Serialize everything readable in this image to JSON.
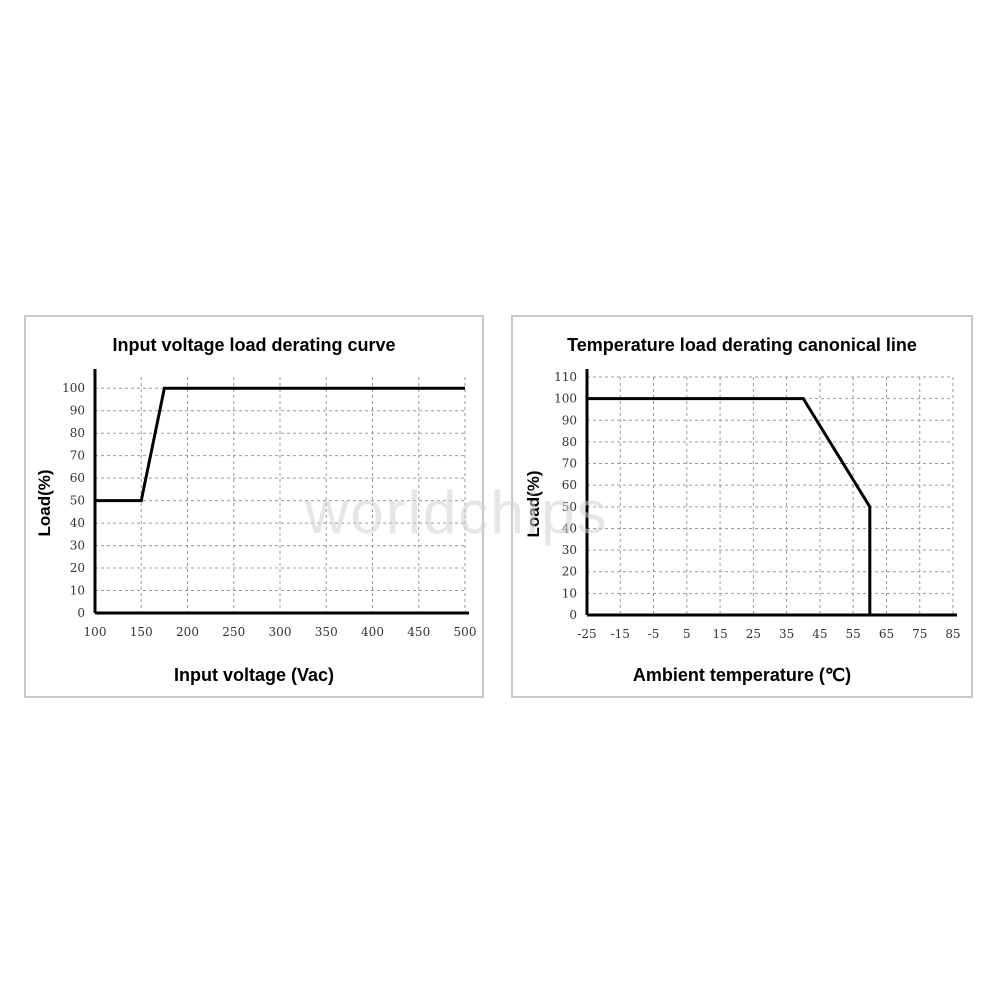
{
  "chart_data": [
    {
      "type": "line",
      "title": "Input voltage load derating curve",
      "xlabel": "Input voltage (Vac)",
      "ylabel": "Load(%)",
      "x_ticks": [
        100,
        150,
        200,
        250,
        300,
        350,
        400,
        450,
        500
      ],
      "y_ticks": [
        0,
        10,
        20,
        30,
        40,
        50,
        60,
        70,
        80,
        90,
        100
      ],
      "xlim": [
        100,
        500
      ],
      "ylim": [
        0,
        105
      ],
      "grid": true,
      "series": [
        {
          "x": [
            100,
            150,
            175,
            500
          ],
          "y": [
            50,
            50,
            100,
            100
          ]
        }
      ]
    },
    {
      "type": "line",
      "title": "Temperature load derating canonical line",
      "xlabel": "Ambient temperature (℃)",
      "ylabel": "Load(%)",
      "x_ticks": [
        -25,
        -15,
        -5,
        5,
        15,
        25,
        35,
        45,
        55,
        65,
        75,
        85
      ],
      "y_ticks": [
        0,
        10,
        20,
        30,
        40,
        50,
        60,
        70,
        80,
        90,
        100,
        110
      ],
      "xlim": [
        -25,
        85
      ],
      "ylim": [
        0,
        110
      ],
      "grid": true,
      "series": [
        {
          "x": [
            -25,
            40,
            60,
            60
          ],
          "y": [
            100,
            100,
            50,
            0
          ]
        }
      ]
    }
  ],
  "watermark": "worldchips"
}
